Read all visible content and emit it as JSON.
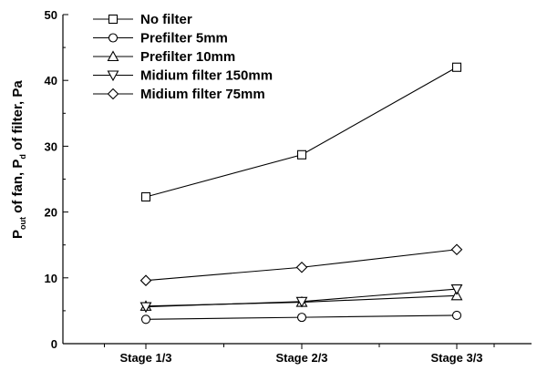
{
  "chart_data": {
    "type": "line",
    "categories": [
      "Stage 1/3",
      "Stage 2/3",
      "Stage 3/3"
    ],
    "ylim": [
      0,
      50
    ],
    "yticks": [
      0,
      10,
      20,
      30,
      40,
      50
    ],
    "ylabel": {
      "p1": "P",
      "p1_sub": "out",
      "mid": " of  fan, ",
      "p2": "P",
      "p2_sub": "d",
      "tail": " of  filter,   Pa"
    },
    "xlabel": "",
    "title": "",
    "legend_position": "top-left",
    "grid": false,
    "series": [
      {
        "name": "No filter",
        "marker": "square",
        "values": [
          22.3,
          28.7,
          42.0
        ]
      },
      {
        "name": "Prefilter 5mm",
        "marker": "circle",
        "values": [
          3.7,
          4.0,
          4.3
        ]
      },
      {
        "name": "Prefilter 10mm",
        "marker": "triangle-up",
        "values": [
          5.7,
          6.3,
          7.3
        ]
      },
      {
        "name": "Midium filter 150mm",
        "marker": "triangle-down",
        "values": [
          5.6,
          6.4,
          8.3
        ]
      },
      {
        "name": "Midium filter 75mm",
        "marker": "diamond",
        "values": [
          9.6,
          11.6,
          14.3
        ]
      }
    ]
  }
}
